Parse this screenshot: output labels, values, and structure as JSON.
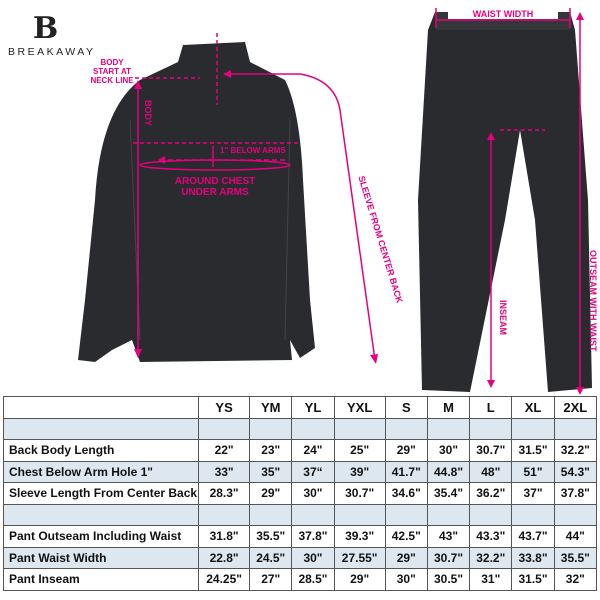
{
  "brand": {
    "name": "BREAKAWAY",
    "mark": "B"
  },
  "annotations": {
    "body_start": "BODY START AT NECK LINE",
    "body": "BODY",
    "below_arms": "1\" BELOW ARMS",
    "chest": "AROUND CHEST UNDER ARMS",
    "sleeve": "SLEEVE FROM CENTER BACK",
    "waist_width": "WAIST WIDTH",
    "inseam": "INSEAM",
    "outseam": "OUTSEAM WITH WAIST"
  },
  "colors": {
    "accent": "#e6007e",
    "garment": "#2a2b2f",
    "row_shade": "#dde7ef"
  },
  "table": {
    "sizes": [
      "YS",
      "YM",
      "YL",
      "YXL",
      "S",
      "M",
      "L",
      "XL",
      "2XL"
    ],
    "rows": [
      {
        "label": "",
        "values": [
          "",
          "",
          "",
          "",
          "",
          "",
          "",
          "",
          ""
        ]
      },
      {
        "label": "Back Body Length",
        "values": [
          "22\"",
          "23\"",
          "24\"",
          "25\"",
          "29\"",
          "30\"",
          "30.7\"",
          "31.5\"",
          "32.2\""
        ]
      },
      {
        "label": "Chest Below Arm Hole 1\"",
        "values": [
          "33\"",
          "35\"",
          "37“",
          "39\"",
          "41.7\"",
          "44.8\"",
          "48\"",
          "51\"",
          "54.3\""
        ]
      },
      {
        "label": "Sleeve Length From Center Back",
        "values": [
          "28.3\"",
          "29\"",
          "30\"",
          "30.7\"",
          "34.6\"",
          "35.4\"",
          "36.2\"",
          "37\"",
          "37.8\""
        ]
      },
      {
        "label": "",
        "values": [
          "",
          "",
          "",
          "",
          "",
          "",
          "",
          "",
          ""
        ]
      },
      {
        "label": "Pant Outseam Including Waist",
        "values": [
          "31.8\"",
          "35.5\"",
          "37.8\"",
          "39.3\"",
          "42.5\"",
          "43\"",
          "43.3\"",
          "43.7\"",
          "44\""
        ]
      },
      {
        "label": "Pant Waist Width",
        "values": [
          "22.8\"",
          "24.5\"",
          "30\"",
          "27.55\"",
          "29\"",
          "30.7\"",
          "32.2\"",
          "33.8\"",
          "35.5\""
        ]
      },
      {
        "label": "Pant Inseam",
        "values": [
          "24.25\"",
          "27\"",
          "28.5\"",
          "29\"",
          "30\"",
          "30.5\"",
          "31\"",
          "31.5\"",
          "32\""
        ]
      }
    ]
  }
}
